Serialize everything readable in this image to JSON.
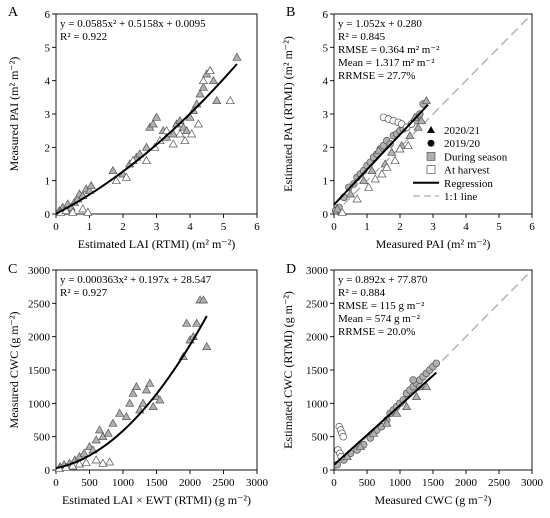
{
  "chart_data": [
    {
      "panel": "A",
      "type": "scatter",
      "xlabel": "Estimated LAI (RTMI) (m² m⁻²)",
      "ylabel": "Measured PAI (m² m⁻²)",
      "xlim": [
        0,
        6
      ],
      "ylim": [
        0,
        6
      ],
      "xticks": [
        "0",
        "1",
        "2",
        "3",
        "4",
        "5",
        "6"
      ],
      "yticks": [
        "0",
        "1",
        "2",
        "3",
        "4",
        "5",
        "6"
      ],
      "annotations": [
        "y = 0.0585x² + 0.5158x + 0.0095",
        "R² = 0.922"
      ],
      "regression": {
        "type": "quadratic",
        "coef": [
          0.0585,
          0.5158,
          0.0095
        ],
        "x_range": [
          0,
          5.4
        ]
      },
      "series": [
        {
          "marker": "triangle",
          "fill": "#b0b0b0",
          "points": [
            [
              0.1,
              0.1
            ],
            [
              0.2,
              0.2
            ],
            [
              0.3,
              0.15
            ],
            [
              0.35,
              0.3
            ],
            [
              0.45,
              0.2
            ],
            [
              0.55,
              0.35
            ],
            [
              0.65,
              0.45
            ],
            [
              0.7,
              0.6
            ],
            [
              0.8,
              0.55
            ],
            [
              0.9,
              0.75
            ],
            [
              1.0,
              0.7
            ],
            [
              1.05,
              0.85
            ],
            [
              1.7,
              1.3
            ],
            [
              2.0,
              1.2
            ],
            [
              2.2,
              1.5
            ],
            [
              2.4,
              1.7
            ],
            [
              2.5,
              1.8
            ],
            [
              2.7,
              2.0
            ],
            [
              2.8,
              2.6
            ],
            [
              2.9,
              2.7
            ],
            [
              3.0,
              2.9
            ],
            [
              3.2,
              2.5
            ],
            [
              3.3,
              2.3
            ],
            [
              3.5,
              2.4
            ],
            [
              3.6,
              2.7
            ],
            [
              3.7,
              2.8
            ],
            [
              3.8,
              2.6
            ],
            [
              3.9,
              2.5
            ],
            [
              4.0,
              2.9
            ],
            [
              4.1,
              3.1
            ],
            [
              4.2,
              3.3
            ],
            [
              4.3,
              3.6
            ],
            [
              4.4,
              3.8
            ],
            [
              4.5,
              4.2
            ],
            [
              4.6,
              4.3
            ],
            [
              4.7,
              4.0
            ],
            [
              4.8,
              3.4
            ],
            [
              5.4,
              4.7
            ]
          ]
        },
        {
          "marker": "triangle",
          "fill": "#ffffff",
          "points": [
            [
              0.15,
              0.05
            ],
            [
              0.3,
              0.1
            ],
            [
              0.5,
              0.05
            ],
            [
              0.8,
              0.15
            ],
            [
              0.95,
              0.05
            ],
            [
              1.8,
              1.0
            ],
            [
              2.1,
              1.1
            ],
            [
              2.3,
              1.6
            ],
            [
              2.7,
              1.6
            ],
            [
              2.95,
              2.0
            ],
            [
              3.1,
              2.2
            ],
            [
              3.3,
              2.5
            ],
            [
              3.5,
              2.1
            ],
            [
              3.7,
              2.4
            ],
            [
              3.85,
              2.2
            ],
            [
              4.05,
              2.4
            ],
            [
              4.25,
              2.7
            ],
            [
              4.4,
              4.0
            ],
            [
              4.6,
              4.3
            ],
            [
              5.2,
              3.4
            ]
          ]
        }
      ]
    },
    {
      "panel": "B",
      "type": "scatter",
      "xlabel": "Measured PAI (m² m⁻²)",
      "ylabel": "Estimated PAI (RTMI) (m² m⁻²)",
      "xlim": [
        0,
        6
      ],
      "ylim": [
        0,
        6
      ],
      "xticks": [
        "0",
        "1",
        "2",
        "3",
        "4",
        "5",
        "6"
      ],
      "yticks": [
        "0",
        "1",
        "2",
        "3",
        "4",
        "5",
        "6"
      ],
      "annotations": [
        "y = 1.052x + 0.280",
        "R² = 0.845",
        "RMSE = 0.364 m² m⁻²",
        "Mean = 1.317 m² m⁻²",
        "RRMSE = 27.7%"
      ],
      "regression": {
        "type": "linear",
        "coef": [
          1.052,
          0.28
        ],
        "x_range": [
          0,
          2.85
        ]
      },
      "one_to_one": [
        0,
        6
      ],
      "legend": [
        "2020/21",
        "2019/20",
        "During season",
        "At harvest",
        "Regression",
        "1:1 line"
      ],
      "series": [
        {
          "marker": "circle",
          "fill": "#b0b0b0",
          "points": [
            [
              0.05,
              0.1
            ],
            [
              0.15,
              0.2
            ],
            [
              0.3,
              0.5
            ],
            [
              0.45,
              0.8
            ],
            [
              0.6,
              0.9
            ],
            [
              0.7,
              1.1
            ],
            [
              0.8,
              1.2
            ],
            [
              0.9,
              1.3
            ],
            [
              1.0,
              1.45
            ],
            [
              1.1,
              1.55
            ],
            [
              1.2,
              1.7
            ],
            [
              1.3,
              1.8
            ],
            [
              1.4,
              1.95
            ],
            [
              1.5,
              2.05
            ],
            [
              1.6,
              2.2
            ],
            [
              1.7,
              2.1
            ],
            [
              1.8,
              2.35
            ],
            [
              1.9,
              2.4
            ],
            [
              2.0,
              2.5
            ],
            [
              2.1,
              2.55
            ],
            [
              2.2,
              2.6
            ],
            [
              2.35,
              2.7
            ],
            [
              2.5,
              2.8
            ],
            [
              2.6,
              3.0
            ],
            [
              2.7,
              3.3
            ]
          ]
        },
        {
          "marker": "circle",
          "fill": "#ffffff",
          "points": [
            [
              1.5,
              2.9
            ],
            [
              1.65,
              2.85
            ],
            [
              1.8,
              2.8
            ],
            [
              1.95,
              2.75
            ],
            [
              2.05,
              2.7
            ],
            [
              2.2,
              2.6
            ],
            [
              2.35,
              2.7
            ]
          ]
        },
        {
          "marker": "triangle",
          "fill": "#b0b0b0",
          "points": [
            [
              0.1,
              0.15
            ],
            [
              0.5,
              0.6
            ],
            [
              0.9,
              1.0
            ],
            [
              1.15,
              1.3
            ],
            [
              1.35,
              1.9
            ],
            [
              1.55,
              1.5
            ],
            [
              1.75,
              1.85
            ],
            [
              2.05,
              2.05
            ],
            [
              2.3,
              2.35
            ],
            [
              2.45,
              2.9
            ],
            [
              2.55,
              2.6
            ],
            [
              2.65,
              2.8
            ],
            [
              2.8,
              3.4
            ]
          ]
        },
        {
          "marker": "triangle",
          "fill": "#ffffff",
          "points": [
            [
              0.25,
              0.05
            ],
            [
              0.7,
              0.45
            ],
            [
              1.05,
              0.8
            ],
            [
              1.25,
              1.05
            ],
            [
              1.45,
              1.2
            ],
            [
              1.6,
              1.4
            ],
            [
              1.85,
              1.6
            ],
            [
              2.0,
              1.95
            ],
            [
              2.25,
              2.05
            ]
          ]
        }
      ]
    },
    {
      "panel": "C",
      "type": "scatter",
      "xlabel": "Estimated LAI × EWT (RTMI) (g m⁻²)",
      "ylabel": "Measured CWC (g m⁻²)",
      "xlim": [
        0,
        3000
      ],
      "ylim": [
        0,
        3000
      ],
      "xticks": [
        "0",
        "500",
        "1000",
        "1500",
        "2000",
        "2500",
        "3000"
      ],
      "yticks": [
        "0",
        "500",
        "1000",
        "1500",
        "2000",
        "2500",
        "3000"
      ],
      "annotations": [
        "y = 0.000363x² + 0.197x + 28.547",
        "R² = 0.927"
      ],
      "regression": {
        "type": "quadratic",
        "coef": [
          0.000363,
          0.197,
          28.547
        ],
        "x_range": [
          0,
          2250
        ]
      },
      "series": [
        {
          "marker": "triangle",
          "fill": "#b0b0b0",
          "points": [
            [
              60,
              50
            ],
            [
              120,
              80
            ],
            [
              200,
              100
            ],
            [
              280,
              150
            ],
            [
              350,
              200
            ],
            [
              420,
              250
            ],
            [
              500,
              350
            ],
            [
              550,
              300
            ],
            [
              600,
              450
            ],
            [
              650,
              600
            ],
            [
              700,
              500
            ],
            [
              780,
              550
            ],
            [
              850,
              700
            ],
            [
              950,
              850
            ],
            [
              1050,
              800
            ],
            [
              1100,
              1000
            ],
            [
              1150,
              1150
            ],
            [
              1200,
              1250
            ],
            [
              1250,
              900
            ],
            [
              1300,
              1000
            ],
            [
              1350,
              1200
            ],
            [
              1400,
              1300
            ],
            [
              1450,
              950
            ],
            [
              1500,
              1100
            ],
            [
              1550,
              1050
            ],
            [
              1900,
              1700
            ],
            [
              1950,
              2200
            ],
            [
              2000,
              1950
            ],
            [
              2050,
              2000
            ],
            [
              2100,
              2200
            ],
            [
              2150,
              2550
            ],
            [
              2200,
              2550
            ],
            [
              2250,
              1850
            ]
          ]
        },
        {
          "marker": "triangle",
          "fill": "#ffffff",
          "points": [
            [
              50,
              20
            ],
            [
              150,
              40
            ],
            [
              250,
              60
            ],
            [
              350,
              90
            ],
            [
              450,
              110
            ],
            [
              600,
              150
            ],
            [
              700,
              100
            ],
            [
              800,
              120
            ]
          ]
        }
      ]
    },
    {
      "panel": "D",
      "type": "scatter",
      "xlabel": "Measured CWC (g m⁻²)",
      "ylabel": "Estimated CWC (RTMI) (g m⁻²)",
      "xlim": [
        0,
        3000
      ],
      "ylim": [
        0,
        3000
      ],
      "xticks": [
        "0",
        "500",
        "1000",
        "1500",
        "2000",
        "2500",
        "3000"
      ],
      "yticks": [
        "0",
        "500",
        "1000",
        "1500",
        "2000",
        "2500",
        "3000"
      ],
      "annotations": [
        "y = 0.892x + 77.870",
        "R² = 0.884",
        "RMSE = 115 g m⁻²",
        "Mean = 574 g m⁻²",
        "RRMSE = 20.0%"
      ],
      "regression": {
        "type": "linear",
        "coef": [
          0.892,
          77.87
        ],
        "x_range": [
          0,
          1550
        ]
      },
      "one_to_one": [
        0,
        3000
      ],
      "series": [
        {
          "marker": "circle",
          "fill": "#b0b0b0",
          "points": [
            [
              50,
              80
            ],
            [
              150,
              150
            ],
            [
              250,
              250
            ],
            [
              350,
              300
            ],
            [
              450,
              380
            ],
            [
              550,
              480
            ],
            [
              650,
              600
            ],
            [
              720,
              650
            ],
            [
              800,
              750
            ],
            [
              850,
              850
            ],
            [
              900,
              900
            ],
            [
              950,
              950
            ],
            [
              1000,
              1000
            ],
            [
              1050,
              1050
            ],
            [
              1100,
              1150
            ],
            [
              1150,
              1200
            ],
            [
              1200,
              1250
            ],
            [
              1250,
              1300
            ],
            [
              1300,
              1350
            ],
            [
              1350,
              1400
            ],
            [
              1400,
              1450
            ],
            [
              1450,
              1500
            ],
            [
              1500,
              1550
            ],
            [
              1550,
              1600
            ],
            [
              1200,
              1350
            ],
            [
              1300,
              1250
            ]
          ]
        },
        {
          "marker": "circle",
          "fill": "#ffffff",
          "points": [
            [
              80,
              650
            ],
            [
              100,
              600
            ],
            [
              120,
              550
            ],
            [
              140,
              500
            ],
            [
              60,
              300
            ],
            [
              90,
              250
            ],
            [
              110,
              200
            ]
          ]
        },
        {
          "marker": "triangle",
          "fill": "#b0b0b0",
          "points": [
            [
              200,
              200
            ],
            [
              400,
              350
            ],
            [
              600,
              550
            ],
            [
              800,
              700
            ],
            [
              950,
              850
            ],
            [
              1100,
              950
            ],
            [
              1250,
              1100
            ],
            [
              1400,
              1250
            ]
          ]
        }
      ]
    }
  ]
}
